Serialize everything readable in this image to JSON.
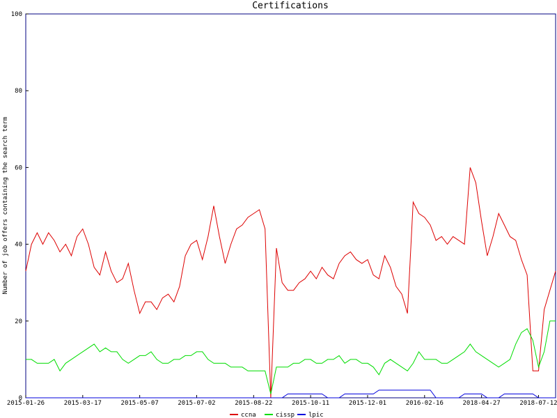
{
  "chart_data": {
    "type": "line",
    "title": "Certifications",
    "y_label": "Number of job offers containing the search term",
    "categories": [
      "2015-01-26",
      null,
      null,
      null,
      null,
      null,
      null,
      null,
      null,
      null,
      "2015-03-17",
      null,
      null,
      null,
      null,
      null,
      null,
      null,
      null,
      null,
      "2015-05-07",
      null,
      null,
      null,
      null,
      null,
      null,
      null,
      null,
      null,
      "2015-07-02",
      null,
      null,
      null,
      null,
      null,
      null,
      null,
      null,
      null,
      "2015-08-22",
      null,
      null,
      null,
      null,
      null,
      null,
      null,
      null,
      null,
      "2015-10-11",
      null,
      null,
      null,
      null,
      null,
      null,
      null,
      null,
      null,
      "2015-12-01",
      null,
      null,
      null,
      null,
      null,
      null,
      null,
      null,
      null,
      "2016-02-16",
      null,
      null,
      null,
      null,
      null,
      null,
      null,
      null,
      null,
      "2018-04-27",
      null,
      null,
      null,
      null,
      null,
      null,
      null,
      null,
      null,
      "2018-07-12",
      null,
      null,
      null
    ],
    "series": [
      {
        "name": "ccna",
        "color": "#dd0000",
        "values": [
          33,
          40,
          43,
          40,
          43,
          41,
          38,
          40,
          37,
          42,
          44,
          40,
          34,
          32,
          38,
          33,
          30,
          31,
          35,
          28,
          22,
          25,
          25,
          23,
          26,
          27,
          25,
          29,
          37,
          40,
          41,
          36,
          42,
          50,
          42,
          35,
          40,
          44,
          45,
          47,
          48,
          49,
          44,
          0,
          39,
          30,
          28,
          28,
          30,
          31,
          33,
          31,
          34,
          32,
          31,
          35,
          37,
          38,
          36,
          35,
          36,
          32,
          31,
          37,
          34,
          29,
          27,
          22,
          51,
          48,
          47,
          45,
          41,
          42,
          40,
          42,
          41,
          40,
          60,
          56,
          46,
          37,
          42,
          48,
          45,
          42,
          41,
          36,
          32,
          7,
          7,
          23,
          28,
          33
        ]
      },
      {
        "name": "cissp",
        "color": "#00dd00",
        "values": [
          10,
          10,
          9,
          9,
          9,
          10,
          7,
          9,
          10,
          11,
          12,
          13,
          14,
          12,
          13,
          12,
          12,
          10,
          9,
          10,
          11,
          11,
          12,
          10,
          9,
          9,
          10,
          10,
          11,
          11,
          12,
          12,
          10,
          9,
          9,
          9,
          8,
          8,
          8,
          7,
          7,
          7,
          7,
          1,
          8,
          8,
          8,
          9,
          9,
          10,
          10,
          9,
          9,
          10,
          10,
          11,
          9,
          10,
          10,
          9,
          9,
          8,
          6,
          9,
          10,
          9,
          8,
          7,
          9,
          12,
          10,
          10,
          10,
          9,
          9,
          10,
          11,
          12,
          14,
          12,
          11,
          10,
          9,
          8,
          9,
          10,
          14,
          17,
          18,
          15,
          8,
          12,
          20,
          20
        ]
      },
      {
        "name": "lpic",
        "color": "#0000dd",
        "values": [
          0,
          0,
          0,
          0,
          0,
          0,
          0,
          0,
          0,
          0,
          0,
          0,
          0,
          0,
          0,
          0,
          0,
          0,
          0,
          0,
          0,
          0,
          0,
          0,
          0,
          0,
          0,
          0,
          0,
          0,
          0,
          0,
          0,
          0,
          0,
          0,
          0,
          0,
          0,
          0,
          0,
          0,
          0,
          0,
          0,
          0,
          1,
          1,
          1,
          1,
          1,
          1,
          1,
          0,
          0,
          0,
          1,
          1,
          1,
          1,
          1,
          1,
          2,
          2,
          2,
          2,
          2,
          2,
          2,
          2,
          2,
          2,
          0,
          0,
          0,
          0,
          0,
          1,
          1,
          1,
          1,
          0,
          0,
          0,
          1,
          1,
          1,
          1,
          1,
          1,
          0,
          0,
          0,
          0
        ]
      }
    ],
    "ylim": [
      0,
      100
    ],
    "yticks": [
      0,
      20,
      40,
      60,
      80,
      100
    ],
    "grid": false
  }
}
